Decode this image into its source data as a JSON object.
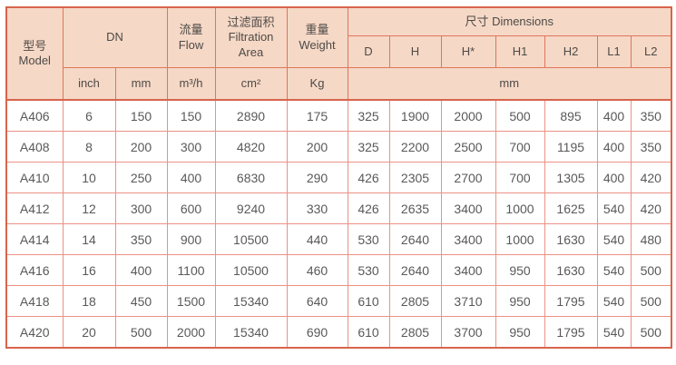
{
  "table": {
    "header": {
      "model_zh": "型号",
      "model_en": "Model",
      "dn": "DN",
      "flow_zh": "流量",
      "flow_en": "Flow",
      "filtration_zh": "过滤面积",
      "filtration_en_line1": "Filtration",
      "filtration_en_line2": "Area",
      "weight_zh": "重量",
      "weight_en": "Weight",
      "dimensions": "尺寸 Dimensions",
      "dim_cols": [
        "D",
        "H",
        "H*",
        "H1",
        "H2",
        "L1",
        "L2"
      ],
      "unit_inch": "inch",
      "unit_mm": "mm",
      "unit_flow": "m³/h",
      "unit_area": "cm²",
      "unit_weight": "Kg",
      "unit_dims": "mm"
    },
    "rows": [
      {
        "model": "A406",
        "values": [
          "6",
          "150",
          "150",
          "2890",
          "175",
          "325",
          "1900",
          "2000",
          "500",
          "895",
          "400",
          "350"
        ]
      },
      {
        "model": "A408",
        "values": [
          "8",
          "200",
          "300",
          "4820",
          "200",
          "325",
          "2200",
          "2500",
          "700",
          "1195",
          "400",
          "350"
        ]
      },
      {
        "model": "A410",
        "values": [
          "10",
          "250",
          "400",
          "6830",
          "290",
          "426",
          "2305",
          "2700",
          "700",
          "1305",
          "400",
          "420"
        ]
      },
      {
        "model": "A412",
        "values": [
          "12",
          "300",
          "600",
          "9240",
          "330",
          "426",
          "2635",
          "3400",
          "1000",
          "1625",
          "540",
          "420"
        ]
      },
      {
        "model": "A414",
        "values": [
          "14",
          "350",
          "900",
          "10500",
          "440",
          "530",
          "2640",
          "3400",
          "1000",
          "1630",
          "540",
          "480"
        ]
      },
      {
        "model": "A416",
        "values": [
          "16",
          "400",
          "1100",
          "10500",
          "460",
          "530",
          "2640",
          "3400",
          "950",
          "1630",
          "540",
          "500"
        ]
      },
      {
        "model": "A418",
        "values": [
          "18",
          "450",
          "1500",
          "15340",
          "640",
          "610",
          "2805",
          "3710",
          "950",
          "1795",
          "540",
          "500"
        ]
      },
      {
        "model": "A420",
        "values": [
          "20",
          "500",
          "2000",
          "15340",
          "690",
          "610",
          "2805",
          "3700",
          "950",
          "1795",
          "540",
          "500"
        ]
      }
    ]
  },
  "colors": {
    "header_bg": "#f5d8c6",
    "outer_border": "#d8644c",
    "header_grid": "#e1755c",
    "data_grid": "#ec9185",
    "header_text": "#4e4a47",
    "data_text": "#595959"
  }
}
